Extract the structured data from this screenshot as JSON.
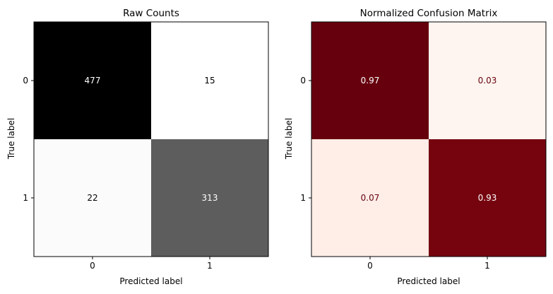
{
  "chart_data": [
    {
      "type": "heatmap",
      "title": "Raw Counts",
      "xlabel": "Predicted label",
      "ylabel": "True label",
      "x_categories": [
        "0",
        "1"
      ],
      "y_categories": [
        "0",
        "1"
      ],
      "values": [
        [
          477,
          15
        ],
        [
          22,
          313
        ]
      ],
      "value_labels": [
        [
          "477",
          "15"
        ],
        [
          "22",
          "313"
        ]
      ],
      "colormap": "gray_r",
      "cell_colors": [
        [
          "#000000",
          "#ffffff"
        ],
        [
          "#fbfbfb",
          "#5d5d5d"
        ]
      ],
      "text_colors": [
        [
          "#ffffff",
          "#000000"
        ],
        [
          "#000000",
          "#ffffff"
        ]
      ],
      "colorbar": false,
      "grid": false
    },
    {
      "type": "heatmap",
      "title": "Normalized Confusion Matrix",
      "xlabel": "Predicted label",
      "ylabel": "True label",
      "x_categories": [
        "0",
        "1"
      ],
      "y_categories": [
        "0",
        "1"
      ],
      "values": [
        [
          0.97,
          0.03
        ],
        [
          0.07,
          0.93
        ]
      ],
      "value_labels": [
        [
          "0.97",
          "0.03"
        ],
        [
          "0.07",
          "0.93"
        ]
      ],
      "colormap": "Reds",
      "cell_colors": [
        [
          "#67000d",
          "#fff5f0"
        ],
        [
          "#feeee7",
          "#75040f"
        ]
      ],
      "text_colors": [
        [
          "#ffffff",
          "#67000d"
        ],
        [
          "#67000d",
          "#ffffff"
        ]
      ],
      "colorbar": false,
      "grid": false
    }
  ]
}
